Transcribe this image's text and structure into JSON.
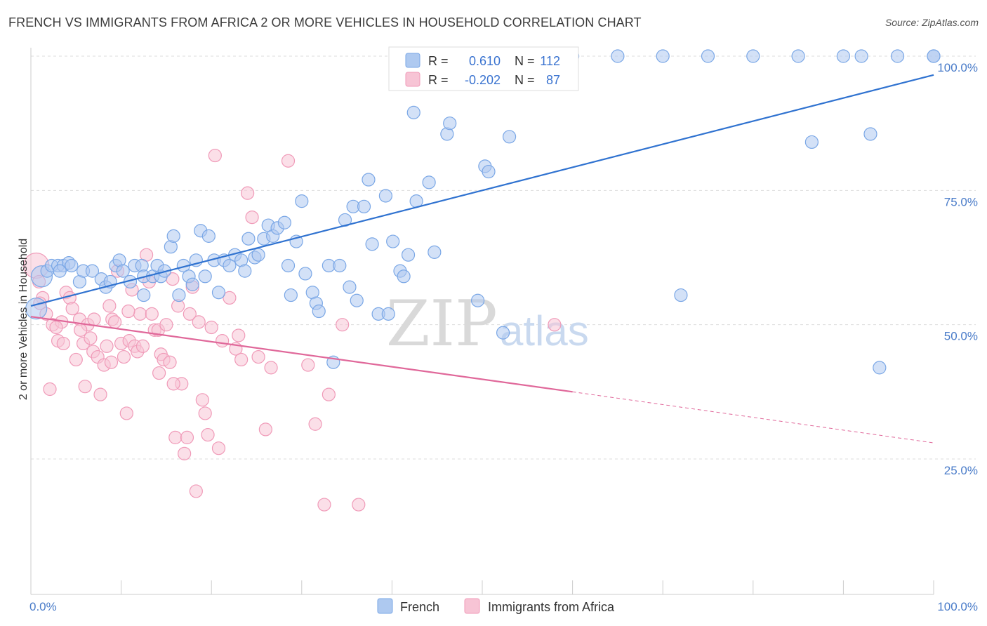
{
  "title": "FRENCH VS IMMIGRANTS FROM AFRICA 2 OR MORE VEHICLES IN HOUSEHOLD CORRELATION CHART",
  "source": "Source: ZipAtlas.com",
  "watermark": {
    "part1": "ZIP",
    "part2": "atlas"
  },
  "colors": {
    "french": "#7aa7e6",
    "french_fill": "#aec9f0",
    "french_line": "#2f72d0",
    "africa": "#f09ab8",
    "africa_fill": "#f7c4d5",
    "africa_line": "#e0689a",
    "tick_label": "#4a7cc9",
    "grid": "#dddddd"
  },
  "legend": {
    "r_label": "R =",
    "n_label": "N =",
    "french_r": "0.610",
    "french_n": "112",
    "africa_r": "-0.202",
    "africa_n": "87"
  },
  "chart_data": {
    "type": "scatter",
    "title": "FRENCH VS IMMIGRANTS FROM AFRICA 2 OR MORE VEHICLES IN HOUSEHOLD CORRELATION CHART",
    "xlabel": "",
    "ylabel": "2 or more Vehicles in Household",
    "xlim": [
      0,
      100
    ],
    "ylim": [
      0,
      103
    ],
    "x_tick_labels": [
      "0.0%",
      "100.0%"
    ],
    "y_ticks": [
      25,
      50,
      75,
      100
    ],
    "y_tick_labels": [
      "25.0%",
      "50.0%",
      "75.0%",
      "100.0%"
    ],
    "grid": "horizontal dashed",
    "legend_position": "top-center",
    "series": [
      {
        "name": "French",
        "trend": {
          "x": [
            0,
            100
          ],
          "y": [
            53.5,
            96.5
          ]
        },
        "points": [
          [
            0.6,
            53
          ],
          [
            1.2,
            59
          ],
          [
            1.8,
            60
          ],
          [
            2.3,
            61
          ],
          [
            3.0,
            61
          ],
          [
            3.6,
            61
          ],
          [
            4.2,
            61.5
          ],
          [
            5.4,
            58
          ],
          [
            5.8,
            60
          ],
          [
            6.8,
            60
          ],
          [
            7.8,
            58.5
          ],
          [
            8.3,
            57
          ],
          [
            8.8,
            58
          ],
          [
            9.4,
            61
          ],
          [
            9.8,
            62
          ],
          [
            10.2,
            60
          ],
          [
            11.0,
            58
          ],
          [
            11.5,
            61
          ],
          [
            12.3,
            61
          ],
          [
            12.5,
            59
          ],
          [
            12.5,
            55.5
          ],
          [
            13.5,
            59
          ],
          [
            14.0,
            61
          ],
          [
            14.4,
            59
          ],
          [
            14.8,
            60
          ],
          [
            15.5,
            64.5
          ],
          [
            15.8,
            66.5
          ],
          [
            16.4,
            55.5
          ],
          [
            16.9,
            61
          ],
          [
            17.5,
            59
          ],
          [
            17.9,
            57.5
          ],
          [
            18.3,
            62
          ],
          [
            18.8,
            67.5
          ],
          [
            19.3,
            59
          ],
          [
            19.7,
            66.5
          ],
          [
            20.3,
            62
          ],
          [
            20.8,
            56
          ],
          [
            21.4,
            62
          ],
          [
            22.0,
            61
          ],
          [
            22.6,
            63
          ],
          [
            23.3,
            62
          ],
          [
            23.7,
            60
          ],
          [
            24.1,
            66
          ],
          [
            24.8,
            62.5
          ],
          [
            25.2,
            63
          ],
          [
            25.8,
            66
          ],
          [
            26.3,
            68.5
          ],
          [
            26.8,
            66.5
          ],
          [
            27.3,
            68
          ],
          [
            28.1,
            69
          ],
          [
            28.5,
            61
          ],
          [
            28.8,
            55.5
          ],
          [
            29.4,
            65.5
          ],
          [
            30.0,
            73
          ],
          [
            30.4,
            59.5
          ],
          [
            31.2,
            56
          ],
          [
            31.6,
            54
          ],
          [
            31.9,
            52.5
          ],
          [
            33.0,
            61
          ],
          [
            33.5,
            43
          ],
          [
            34.2,
            61
          ],
          [
            34.8,
            69.5
          ],
          [
            35.3,
            57
          ],
          [
            35.7,
            72
          ],
          [
            36.1,
            54.5
          ],
          [
            36.9,
            72
          ],
          [
            37.4,
            77
          ],
          [
            37.8,
            65
          ],
          [
            38.5,
            52
          ],
          [
            39.3,
            74
          ],
          [
            39.6,
            52
          ],
          [
            40.1,
            65.5
          ],
          [
            40.9,
            60
          ],
          [
            41.3,
            59
          ],
          [
            41.8,
            63
          ],
          [
            42.4,
            89.5
          ],
          [
            42.7,
            73
          ],
          [
            44.1,
            76.5
          ],
          [
            44.7,
            63.5
          ],
          [
            45.4,
            100
          ],
          [
            46.1,
            85.5
          ],
          [
            46.4,
            87.5
          ],
          [
            47.0,
            100
          ],
          [
            48.5,
            100
          ],
          [
            49.5,
            54.5
          ],
          [
            50.3,
            79.5
          ],
          [
            50.7,
            78.5
          ],
          [
            51.2,
            100
          ],
          [
            52.3,
            48.5
          ],
          [
            53.0,
            85
          ],
          [
            53.9,
            100
          ],
          [
            54.5,
            100
          ],
          [
            56.0,
            100
          ],
          [
            57.0,
            100
          ],
          [
            58.0,
            100
          ],
          [
            60.0,
            100
          ],
          [
            65.0,
            100
          ],
          [
            70.0,
            100
          ],
          [
            72.0,
            55.5
          ],
          [
            75.0,
            100
          ],
          [
            80.0,
            100
          ],
          [
            85.0,
            100
          ],
          [
            86.5,
            84
          ],
          [
            90.0,
            100
          ],
          [
            92.0,
            100
          ],
          [
            93.0,
            85.5
          ],
          [
            94.0,
            42
          ],
          [
            96.0,
            100
          ],
          [
            100.0,
            100
          ],
          [
            100.0,
            100
          ],
          [
            4.5,
            61
          ],
          [
            3.2,
            60
          ]
        ]
      },
      {
        "name": "Immigrants from Africa",
        "trend_solid": {
          "x": [
            0,
            60
          ],
          "y": [
            51.5,
            37.5
          ]
        },
        "trend_dashed": {
          "x": [
            60,
            100
          ],
          "y": [
            37.5,
            28
          ]
        },
        "points": [
          [
            0.6,
            61
          ],
          [
            0.9,
            58
          ],
          [
            1.3,
            55
          ],
          [
            1.7,
            52
          ],
          [
            2.1,
            38
          ],
          [
            2.4,
            50
          ],
          [
            3.0,
            47
          ],
          [
            3.4,
            50.5
          ],
          [
            3.9,
            56
          ],
          [
            4.3,
            55
          ],
          [
            4.6,
            53
          ],
          [
            5.0,
            43.5
          ],
          [
            5.4,
            51
          ],
          [
            5.8,
            46.5
          ],
          [
            6.0,
            38.5
          ],
          [
            6.3,
            50
          ],
          [
            6.6,
            47.5
          ],
          [
            6.9,
            45
          ],
          [
            7.4,
            44
          ],
          [
            7.7,
            37
          ],
          [
            8.1,
            42.5
          ],
          [
            8.4,
            46
          ],
          [
            8.7,
            53.5
          ],
          [
            9.0,
            51
          ],
          [
            9.3,
            50.5
          ],
          [
            9.6,
            60
          ],
          [
            10.0,
            46.5
          ],
          [
            10.3,
            44
          ],
          [
            10.6,
            33.5
          ],
          [
            10.9,
            47
          ],
          [
            11.2,
            56.5
          ],
          [
            11.5,
            46
          ],
          [
            11.8,
            45
          ],
          [
            12.1,
            52
          ],
          [
            12.4,
            46
          ],
          [
            12.8,
            63
          ],
          [
            13.1,
            58
          ],
          [
            13.4,
            52
          ],
          [
            13.7,
            49
          ],
          [
            14.1,
            49
          ],
          [
            14.4,
            44.5
          ],
          [
            14.7,
            43.5
          ],
          [
            15.0,
            50
          ],
          [
            15.4,
            43
          ],
          [
            15.7,
            58.5
          ],
          [
            16.0,
            29
          ],
          [
            16.3,
            53.5
          ],
          [
            16.7,
            39
          ],
          [
            17.0,
            26
          ],
          [
            17.3,
            29
          ],
          [
            17.6,
            52
          ],
          [
            17.9,
            57
          ],
          [
            18.3,
            19
          ],
          [
            18.6,
            50.5
          ],
          [
            19.0,
            36
          ],
          [
            19.3,
            33.5
          ],
          [
            19.6,
            29.5
          ],
          [
            20.0,
            49.5
          ],
          [
            20.4,
            81.5
          ],
          [
            20.8,
            27
          ],
          [
            21.2,
            47
          ],
          [
            22.0,
            55
          ],
          [
            22.7,
            45.5
          ],
          [
            23.0,
            48
          ],
          [
            23.3,
            43.5
          ],
          [
            24.0,
            74.5
          ],
          [
            24.5,
            70
          ],
          [
            25.2,
            44
          ],
          [
            26.0,
            30.5
          ],
          [
            26.6,
            42
          ],
          [
            28.5,
            80.5
          ],
          [
            30.7,
            42.5
          ],
          [
            31.5,
            31.5
          ],
          [
            32.5,
            16.5
          ],
          [
            33.0,
            37
          ],
          [
            34.5,
            50
          ],
          [
            36.3,
            16.5
          ],
          [
            3.6,
            46.5
          ],
          [
            1.0,
            54
          ],
          [
            5.5,
            49
          ],
          [
            2.8,
            49.5
          ],
          [
            7.0,
            51
          ],
          [
            8.9,
            43
          ],
          [
            10.8,
            52.5
          ],
          [
            14.2,
            41
          ],
          [
            15.8,
            39
          ],
          [
            58.0,
            50
          ]
        ]
      }
    ]
  },
  "bottom_legend": {
    "french": "French",
    "africa": "Immigrants from Africa"
  }
}
